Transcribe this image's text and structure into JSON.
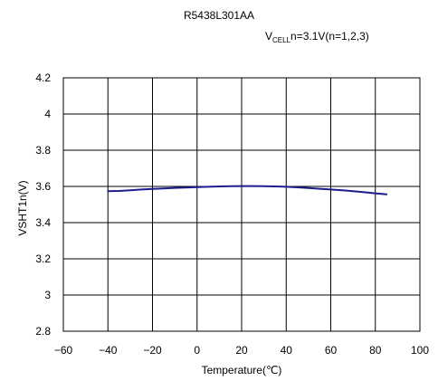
{
  "chart_data": {
    "type": "line",
    "title": "R5438L301AA",
    "subtitle": {
      "prefix": "V",
      "subscript": "CELL",
      "suffix": "n=3.1V(n=1,2,3)"
    },
    "xlabel": "Temperature(℃)",
    "ylabel": "VSHT1n(V)",
    "xlim": [
      -60,
      100
    ],
    "ylim": [
      2.8,
      4.2
    ],
    "x_ticks": [
      -60,
      -40,
      -20,
      0,
      20,
      40,
      60,
      80,
      100
    ],
    "x_tick_labels": [
      "−60",
      "−40",
      "−20",
      "0",
      "20",
      "40",
      "60",
      "80",
      "100"
    ],
    "y_ticks": [
      2.8,
      3.0,
      3.2,
      3.4,
      3.6,
      3.8,
      4.0,
      4.2
    ],
    "y_tick_labels": [
      "2.8",
      "3",
      "3.2",
      "3.4",
      "3.6",
      "3.8",
      "4",
      "4.2"
    ],
    "grid": true,
    "series": [
      {
        "color": "#1c1c8c",
        "x": [
          -40,
          -35,
          -30,
          -25,
          -20,
          -15,
          -10,
          -5,
          0,
          5,
          10,
          15,
          20,
          25,
          30,
          35,
          40,
          45,
          50,
          55,
          60,
          65,
          70,
          75,
          80,
          85
        ],
        "y": [
          3.574,
          3.575,
          3.579,
          3.583,
          3.586,
          3.589,
          3.592,
          3.594,
          3.596,
          3.598,
          3.6,
          3.601,
          3.602,
          3.602,
          3.601,
          3.6,
          3.598,
          3.595,
          3.591,
          3.587,
          3.583,
          3.579,
          3.574,
          3.568,
          3.562,
          3.556
        ]
      }
    ]
  }
}
